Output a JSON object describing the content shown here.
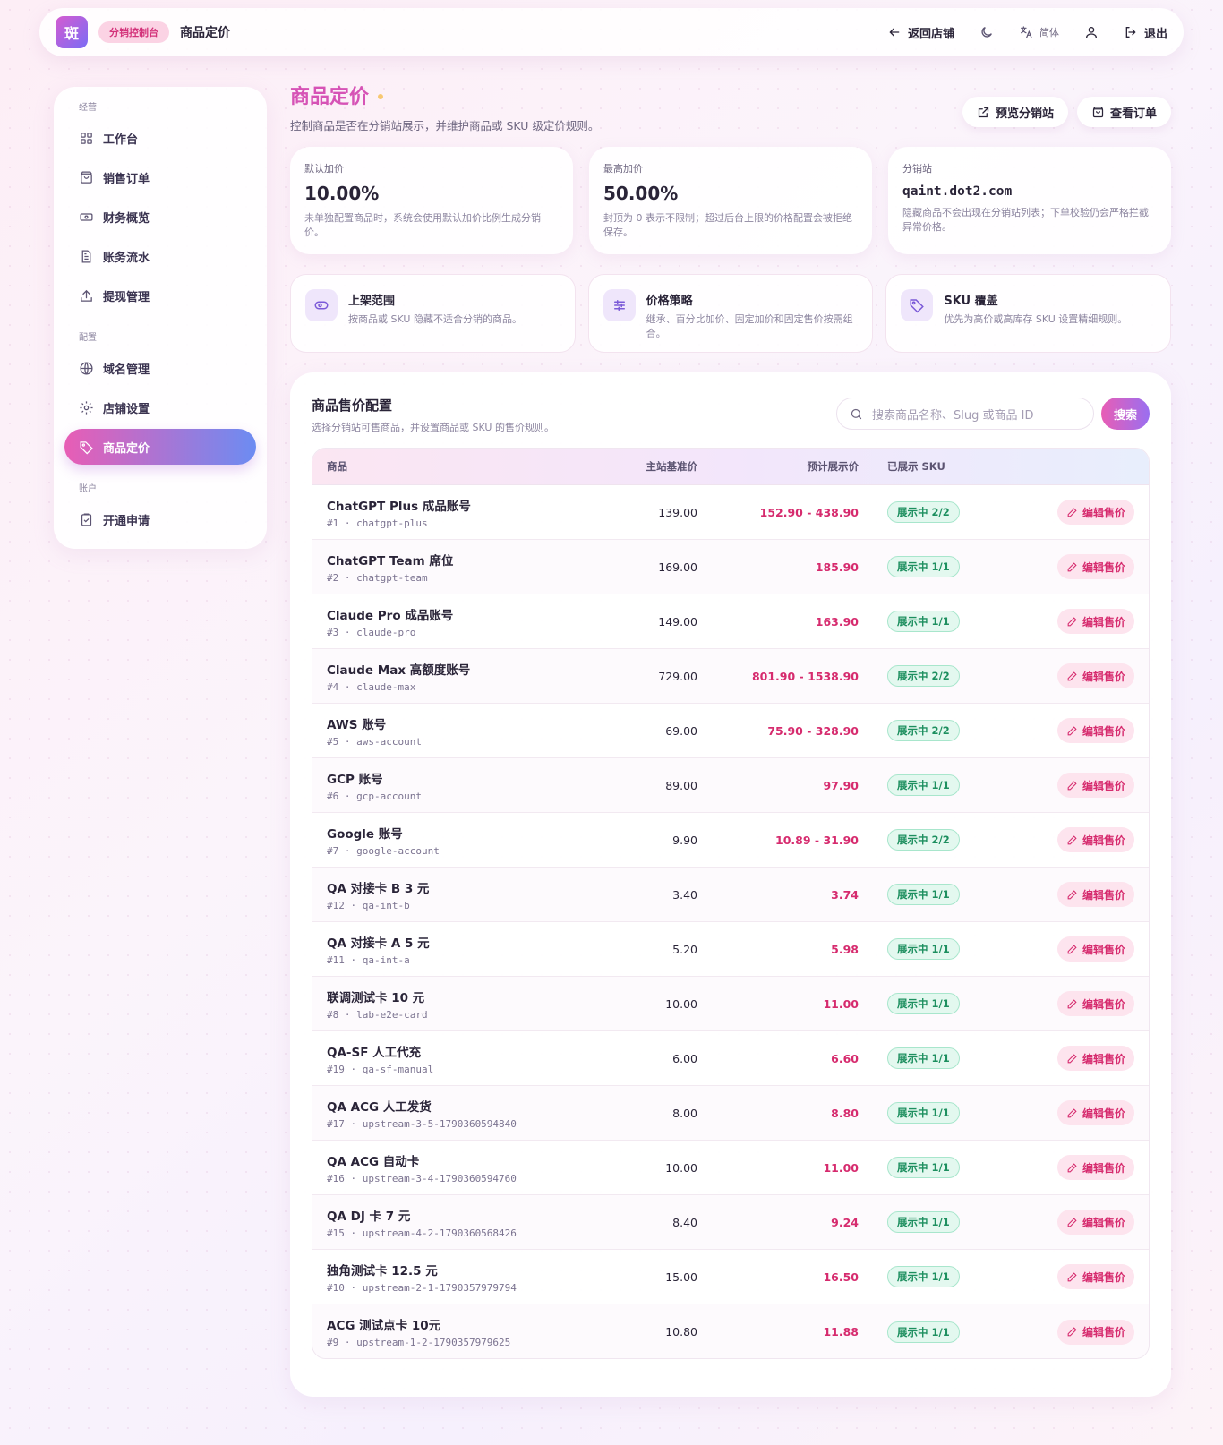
{
  "header": {
    "logo_text": "斑",
    "badge": "分销控制台",
    "title": "商品定价",
    "back_store": "返回店铺",
    "lang": "简体",
    "logout": "退出"
  },
  "sidebar": {
    "sections": [
      {
        "label": "经营",
        "items": [
          "工作台",
          "销售订单",
          "财务概览",
          "账务流水",
          "提现管理"
        ]
      },
      {
        "label": "配置",
        "items": [
          "域名管理",
          "店铺设置",
          "商品定价"
        ]
      },
      {
        "label": "账户",
        "items": [
          "开通申请"
        ]
      }
    ],
    "active": "商品定价"
  },
  "page": {
    "title": "商品定价",
    "subtitle": "控制商品是否在分销站展示，并维护商品或 SKU 级定价规则。",
    "preview_btn": "预览分销站",
    "orders_btn": "查看订单"
  },
  "stats": [
    {
      "label": "默认加价",
      "value": "10.00%",
      "desc": "未单独配置商品时，系统会使用默认加价比例生成分销价。"
    },
    {
      "label": "最高加价",
      "value": "50.00%",
      "desc": "封顶为 0 表示不限制；超过后台上限的价格配置会被拒绝保存。"
    },
    {
      "label": "分销站",
      "value": "qaint.dot2.com",
      "desc": "隐藏商品不会出现在分销站列表；下单校验仍会严格拦截异常价格。"
    }
  ],
  "features": [
    {
      "title": "上架范围",
      "desc": "按商品或 SKU 隐藏不适合分销的商品。",
      "icon": "eye-icon"
    },
    {
      "title": "价格策略",
      "desc": "继承、百分比加价、固定加价和固定售价按需组合。",
      "icon": "sliders-icon"
    },
    {
      "title": "SKU 覆盖",
      "desc": "优先为高价或高库存 SKU 设置精细规则。",
      "icon": "tag-icon"
    }
  ],
  "panel": {
    "title": "商品售价配置",
    "subtitle": "选择分销站可售商品，并设置商品或 SKU 的售价规则。",
    "search_placeholder": "搜索商品名称、Slug 或商品 ID",
    "search_btn": "搜索",
    "columns": [
      "商品",
      "主站基准价",
      "预计展示价",
      "已展示 SKU"
    ],
    "edit_label": "编辑售价",
    "rows": [
      {
        "name": "ChatGPT Plus 成品账号",
        "meta": "#1 · chatgpt-plus",
        "base": "139.00",
        "display": "152.90 - 438.90",
        "sku": "展示中 2/2"
      },
      {
        "name": "ChatGPT Team 席位",
        "meta": "#2 · chatgpt-team",
        "base": "169.00",
        "display": "185.90",
        "sku": "展示中 1/1"
      },
      {
        "name": "Claude Pro 成品账号",
        "meta": "#3 · claude-pro",
        "base": "149.00",
        "display": "163.90",
        "sku": "展示中 1/1"
      },
      {
        "name": "Claude Max 高额度账号",
        "meta": "#4 · claude-max",
        "base": "729.00",
        "display": "801.90 - 1538.90",
        "sku": "展示中 2/2"
      },
      {
        "name": "AWS 账号",
        "meta": "#5 · aws-account",
        "base": "69.00",
        "display": "75.90 - 328.90",
        "sku": "展示中 2/2"
      },
      {
        "name": "GCP 账号",
        "meta": "#6 · gcp-account",
        "base": "89.00",
        "display": "97.90",
        "sku": "展示中 1/1"
      },
      {
        "name": "Google 账号",
        "meta": "#7 · google-account",
        "base": "9.90",
        "display": "10.89 - 31.90",
        "sku": "展示中 2/2"
      },
      {
        "name": "QA 对接卡 B 3 元",
        "meta": "#12 · qa-int-b",
        "base": "3.40",
        "display": "3.74",
        "sku": "展示中 1/1"
      },
      {
        "name": "QA 对接卡 A 5 元",
        "meta": "#11 · qa-int-a",
        "base": "5.20",
        "display": "5.98",
        "sku": "展示中 1/1"
      },
      {
        "name": "联调测试卡 10 元",
        "meta": "#8 · lab-e2e-card",
        "base": "10.00",
        "display": "11.00",
        "sku": "展示中 1/1"
      },
      {
        "name": "QA-SF 人工代充",
        "meta": "#19 · qa-sf-manual",
        "base": "6.00",
        "display": "6.60",
        "sku": "展示中 1/1"
      },
      {
        "name": "QA ACG 人工发货",
        "meta": "#17 · upstream-3-5-1790360594840",
        "base": "8.00",
        "display": "8.80",
        "sku": "展示中 1/1"
      },
      {
        "name": "QA ACG 自动卡",
        "meta": "#16 · upstream-3-4-1790360594760",
        "base": "10.00",
        "display": "11.00",
        "sku": "展示中 1/1"
      },
      {
        "name": "QA DJ 卡 7 元",
        "meta": "#15 · upstream-4-2-1790360568426",
        "base": "8.40",
        "display": "9.24",
        "sku": "展示中 1/1"
      },
      {
        "name": "独角测试卡 12.5 元",
        "meta": "#10 · upstream-2-1-1790357979794",
        "base": "15.00",
        "display": "16.50",
        "sku": "展示中 1/1"
      },
      {
        "name": "ACG 测试点卡 10元",
        "meta": "#9 · upstream-1-2-1790357979625",
        "base": "10.80",
        "display": "11.88",
        "sku": "展示中 1/1"
      }
    ]
  },
  "colors": {
    "accent_pink": "#e85db5",
    "accent_blue": "#6c8cf2",
    "price_red": "#d62b6e",
    "sku_green": "#1d8f5f"
  }
}
